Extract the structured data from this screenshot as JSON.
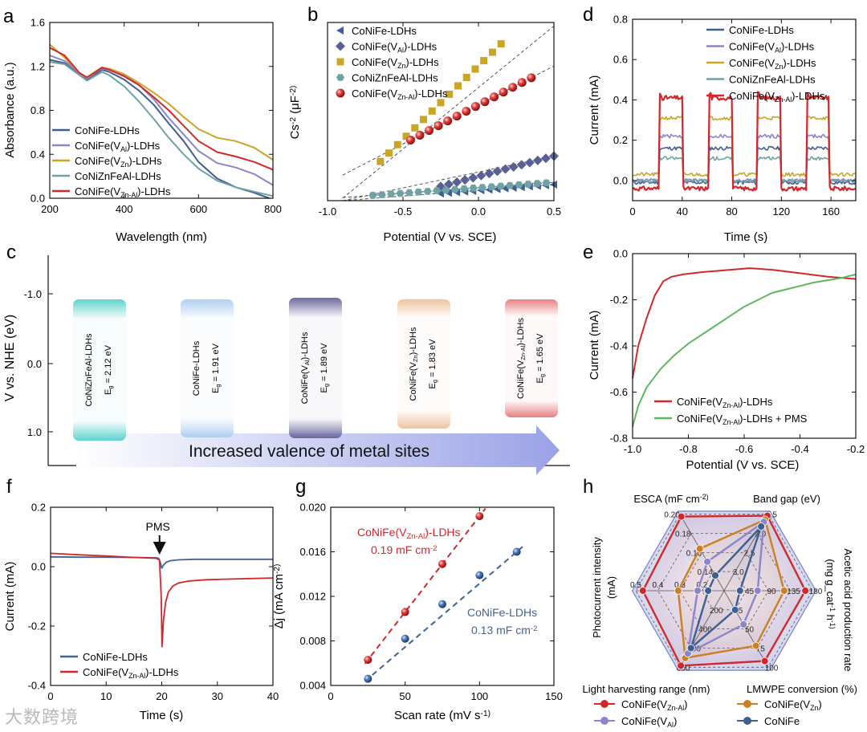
{
  "colors": {
    "CoNiFe": "#3d5f94",
    "VAl": "#8b85c9",
    "VZn": "#c9a627",
    "ZnFeAl": "#6fa2a4",
    "VZnAl": "#d1282c",
    "pms": "#5cb85c",
    "slate": "#3f6497"
  },
  "watermark": "大数跨境",
  "chart_data": [
    {
      "panel": "a",
      "type": "line",
      "xlabel": "Wavelength (nm)",
      "ylabel": "Absorbance (a.u.)",
      "xlim": [
        200,
        800
      ],
      "ylim": [
        0,
        1.6
      ],
      "xticks": [
        "200",
        "400",
        "600",
        "800"
      ],
      "yticks": [
        "0.0",
        "0.4",
        "0.8",
        "1.2",
        "1.6"
      ],
      "series": [
        {
          "name": "CoNiFe-LDHs",
          "color": "CoNiFe",
          "x": [
            200,
            240,
            260,
            280,
            300,
            320,
            340,
            360,
            400,
            440,
            480,
            520,
            560,
            600,
            650,
            700,
            750,
            790
          ],
          "y": [
            1.26,
            1.23,
            1.18,
            1.12,
            1.08,
            1.12,
            1.17,
            1.15,
            1.08,
            0.98,
            0.85,
            0.68,
            0.52,
            0.33,
            0.18,
            0.1,
            0.05,
            0.0
          ]
        },
        {
          "name": "CoNiFe(V_Al)-LDHs",
          "color": "VAl",
          "x": [
            200,
            240,
            260,
            280,
            300,
            320,
            340,
            360,
            400,
            440,
            480,
            520,
            560,
            600,
            650,
            700,
            750,
            800
          ],
          "y": [
            1.3,
            1.25,
            1.2,
            1.14,
            1.1,
            1.14,
            1.18,
            1.17,
            1.12,
            1.03,
            0.9,
            0.73,
            0.58,
            0.43,
            0.32,
            0.28,
            0.22,
            0.12
          ]
        },
        {
          "name": "CoNiFe(V_Zn)-LDHs",
          "color": "VZn",
          "x": [
            200,
            240,
            260,
            280,
            300,
            320,
            340,
            360,
            400,
            440,
            480,
            520,
            560,
            600,
            650,
            700,
            750,
            800
          ],
          "y": [
            1.4,
            1.28,
            1.21,
            1.14,
            1.1,
            1.15,
            1.19,
            1.18,
            1.13,
            1.05,
            0.96,
            0.86,
            0.74,
            0.63,
            0.55,
            0.52,
            0.46,
            0.35
          ]
        },
        {
          "name": "CoNiZnFeAl-LDHs",
          "color": "ZnFeAl",
          "x": [
            200,
            240,
            260,
            280,
            300,
            320,
            340,
            360,
            400,
            440,
            480,
            520,
            560,
            600,
            650,
            700,
            750,
            800
          ],
          "y": [
            1.24,
            1.22,
            1.17,
            1.12,
            1.07,
            1.11,
            1.15,
            1.12,
            1.02,
            0.88,
            0.72,
            0.55,
            0.4,
            0.27,
            0.16,
            0.1,
            0.06,
            0.02
          ]
        },
        {
          "name": "CoNiFe(V_Zn-Al)-LDHs",
          "color": "VZnAl",
          "x": [
            200,
            240,
            260,
            280,
            300,
            320,
            340,
            360,
            400,
            440,
            480,
            520,
            560,
            600,
            650,
            700,
            750,
            800
          ],
          "y": [
            1.37,
            1.3,
            1.22,
            1.14,
            1.1,
            1.14,
            1.19,
            1.17,
            1.11,
            1.03,
            0.92,
            0.8,
            0.66,
            0.52,
            0.42,
            0.38,
            0.33,
            0.26
          ]
        }
      ]
    },
    {
      "panel": "b",
      "type": "scatter",
      "xlabel": "Potential (V vs. SCE)",
      "ylabel": "Cs-2 (μF-2)",
      "xlim": [
        -1.0,
        0.5
      ],
      "ylim": [
        0,
        1
      ],
      "xticks": [
        "-1.0",
        "-0.5",
        "0.0",
        "0.5"
      ],
      "series": [
        {
          "name": "CoNiFe-LDHs",
          "marker": "triangle-left",
          "color": "CoNiFe",
          "x0": -0.25,
          "x1": 0.5,
          "y0": 0.04,
          "y1": 0.09,
          "n": 15
        },
        {
          "name": "CoNiFe(V_Al)-LDHs",
          "marker": "diamond",
          "color": "CoNiFe",
          "x0": -0.25,
          "x1": 0.5,
          "y0": 0.08,
          "y1": 0.25,
          "n": 15
        },
        {
          "name": "CoNiFe(V_Zn)-LDHs",
          "marker": "square",
          "color": "VZn",
          "x0": -0.65,
          "x1": 0.15,
          "y0": 0.22,
          "y1": 0.88,
          "n": 15
        },
        {
          "name": "CoNiZnFeAl-LDHs",
          "marker": "hexagon",
          "color": "ZnFeAl",
          "x0": -0.7,
          "x1": 0.45,
          "y0": 0.03,
          "y1": 0.1,
          "n": 20
        },
        {
          "name": "CoNiFe(V_Zn-Al)-LDHs",
          "marker": "sphere",
          "color": "VZnAl",
          "x0": -0.45,
          "x1": 0.35,
          "y0": 0.34,
          "y1": 0.69,
          "n": 14
        }
      ]
    },
    {
      "panel": "d",
      "type": "line",
      "xlabel": "Time (s)",
      "ylabel": "Current (mA)",
      "xlim": [
        0,
        180
      ],
      "ylim": [
        -0.1,
        0.8
      ],
      "xticks": [
        "0",
        "40",
        "80",
        "120",
        "160"
      ],
      "yticks": [
        "0.0",
        "0.2",
        "0.4",
        "0.6",
        "0.8"
      ],
      "light_on": [
        [
          22,
          40
        ],
        [
          62,
          80
        ],
        [
          101,
          119
        ],
        [
          141,
          158
        ]
      ],
      "series": [
        {
          "name": "CoNiFe-LDHs",
          "color": "CoNiFe",
          "base": -0.01,
          "on": 0.16
        },
        {
          "name": "CoNiFe(V_Al)-LDHs",
          "color": "VAl",
          "base": 0.0,
          "on": 0.22
        },
        {
          "name": "CoNiFe(V_Zn)-LDHs",
          "color": "VZn",
          "base": 0.03,
          "on": 0.31
        },
        {
          "name": "CoNiZnFeAl-LDHs",
          "color": "ZnFeAl",
          "base": 0.0,
          "on": 0.11
        },
        {
          "name": "CoNiFe(V_Zn-Al)-LDHs",
          "color": "VZnAl",
          "base": -0.04,
          "on": 0.41
        }
      ]
    },
    {
      "panel": "c",
      "type": "diagram",
      "ylabel": "V vs. NHE (eV)",
      "yticks": [
        "-1.0",
        "0.0",
        "1.0"
      ],
      "arrow_text": "Increased valence of metal sites",
      "bars": [
        {
          "name": "CoNiZnFeAl-LDHs",
          "eg": "Eg = 2.12 eV",
          "color": "#5fd4cf"
        },
        {
          "name": "CoNiFe-LDHs",
          "eg": "Eg = 1.91 eV",
          "color": "#b0cff0"
        },
        {
          "name": "CoNiFe(V_Al)-LDHs",
          "eg": "Eg = 1.89 eV",
          "color": "#6c6a9e"
        },
        {
          "name": "CoNiFe(V_Zn)-LDHs",
          "eg": "Eg = 1.83 eV",
          "color": "#efc49d"
        },
        {
          "name": "CoNiFe(V_Zn-Al)-LDHs",
          "eg": "Eg = 1.65 eV",
          "color": "#e88080"
        }
      ]
    },
    {
      "panel": "e",
      "type": "line",
      "xlabel": "Potential (V vs. SCE)",
      "ylabel": "Current (mA)",
      "xlim": [
        -1.0,
        -0.2
      ],
      "ylim": [
        -0.8,
        0.0
      ],
      "xticks": [
        "-1.0",
        "-0.8",
        "-0.6",
        "-0.4",
        "-0.2"
      ],
      "yticks": [
        "0.0",
        "-0.2",
        "-0.4",
        "-0.6",
        "-0.8"
      ],
      "series": [
        {
          "name": "CoNiFe(V_Zn-Al)-LDHs",
          "color": "VZnAl",
          "x": [
            -1.0,
            -0.98,
            -0.95,
            -0.92,
            -0.89,
            -0.86,
            -0.82,
            -0.75,
            -0.65,
            -0.58,
            -0.5,
            -0.4,
            -0.3,
            -0.2
          ],
          "y": [
            -0.54,
            -0.4,
            -0.28,
            -0.18,
            -0.12,
            -0.1,
            -0.09,
            -0.08,
            -0.07,
            -0.063,
            -0.07,
            -0.085,
            -0.1,
            -0.11
          ]
        },
        {
          "name": "CoNiFe(V_Zn-Al)-LDHs + PMS",
          "color": "pms",
          "x": [
            -1.0,
            -0.98,
            -0.95,
            -0.9,
            -0.85,
            -0.8,
            -0.75,
            -0.7,
            -0.65,
            -0.6,
            -0.55,
            -0.5,
            -0.45,
            -0.4,
            -0.35,
            -0.3,
            -0.25,
            -0.2
          ],
          "y": [
            -0.75,
            -0.66,
            -0.58,
            -0.5,
            -0.44,
            -0.39,
            -0.35,
            -0.31,
            -0.27,
            -0.23,
            -0.2,
            -0.17,
            -0.155,
            -0.14,
            -0.125,
            -0.115,
            -0.105,
            -0.09
          ]
        }
      ]
    },
    {
      "panel": "f",
      "type": "line",
      "xlabel": "Time (s)",
      "ylabel": "Current (mA)",
      "xlim": [
        0,
        40
      ],
      "ylim": [
        -0.4,
        0.2
      ],
      "xticks": [
        "0",
        "10",
        "20",
        "30",
        "40"
      ],
      "yticks": [
        "0.2",
        "0.0",
        "-0.2",
        "-0.4"
      ],
      "annotation": "PMS",
      "annotation_x": 19.6,
      "series": [
        {
          "name": "CoNiFe-LDHs",
          "color": "slate",
          "x": [
            0,
            5,
            10,
            15,
            19,
            19.5,
            19.8,
            20.0,
            20.3,
            20.8,
            21.5,
            23,
            26,
            30,
            35,
            40
          ],
          "y": [
            0.033,
            0.032,
            0.032,
            0.031,
            0.03,
            0.027,
            0.01,
            -0.005,
            0.005,
            0.015,
            0.02,
            0.023,
            0.025,
            0.025,
            0.025,
            0.025
          ]
        },
        {
          "name": "CoNiFe(V_Zn-Al)-LDHs",
          "color": "VZnAl",
          "x": [
            0,
            5,
            10,
            15,
            19,
            19.6,
            19.9,
            20.05,
            20.3,
            20.7,
            21.2,
            22,
            23,
            25,
            28,
            32,
            36,
            40
          ],
          "y": [
            0.045,
            0.04,
            0.036,
            0.031,
            0.028,
            0.022,
            -0.1,
            -0.27,
            -0.18,
            -0.12,
            -0.085,
            -0.065,
            -0.055,
            -0.048,
            -0.044,
            -0.042,
            -0.04,
            -0.038
          ]
        }
      ]
    },
    {
      "panel": "g",
      "type": "scatter",
      "xlabel": "Scan rate (mV s-1)",
      "ylabel": "Δj (mA cm-2)",
      "xlim": [
        0,
        150
      ],
      "ylim": [
        0.004,
        0.02
      ],
      "xticks": [
        "0",
        "50",
        "100",
        "150"
      ],
      "yticks": [
        "0.004",
        "0.008",
        "0.012",
        "0.016",
        "0.020"
      ],
      "series": [
        {
          "name": "CoNiFe(V_Zn-Al)-LDHs",
          "color": "VZnAl",
          "label1": "CoNiFe(V_Zn-Al)-LDHs",
          "label2": "0.19 mF cm-2",
          "x": [
            25,
            50,
            75,
            100
          ],
          "y": [
            0.0063,
            0.0106,
            0.0149,
            0.0192
          ]
        },
        {
          "name": "CoNiFe-LDHs",
          "color": "slate",
          "label1": "CoNiFe-LDHs",
          "label2": "0.13 mF cm-2",
          "x": [
            25,
            50,
            75,
            100,
            125
          ],
          "y": [
            0.0046,
            0.0082,
            0.0113,
            0.0139,
            0.016
          ]
        }
      ]
    },
    {
      "panel": "h",
      "type": "radar",
      "axes": [
        "ESCA (mF cm-2)",
        "Band gap (eV)",
        "Acetic acid production rate (mg gcat-1 h-1)",
        "LMWPE conversion (%)",
        "Light harvesting range (nm)",
        "Photocurrent intensity (mA)"
      ],
      "axis_ticks": [
        [
          "0.14",
          "0.16",
          "0.18",
          "0.20"
        ],
        [
          "3.0",
          "2.5",
          "2.0",
          "1.5"
        ],
        [
          "45",
          "90",
          "135",
          "180"
        ],
        [
          "25",
          "50",
          "75",
          "100"
        ],
        [
          "200",
          "400",
          "600",
          "800"
        ],
        [
          "0.2",
          "0.3",
          "0.4",
          "0.5"
        ]
      ],
      "series": [
        {
          "name": "CoNiFe(V_Zn-Al)",
          "color": "VZnAl",
          "values": [
            0.97,
            0.98,
            0.92,
            0.92,
            0.98,
            0.92
          ]
        },
        {
          "name": "CoNiFe(V_Zn)",
          "color": "#cc7f25",
          "values": [
            0.55,
            0.93,
            0.68,
            0.72,
            0.88,
            0.52
          ]
        },
        {
          "name": "CoNiFe(V_Al)",
          "color": "VAl",
          "values": [
            0.38,
            0.9,
            0.38,
            0.44,
            0.82,
            0.3
          ]
        },
        {
          "name": "CoNiFe",
          "color": "CoNiFe",
          "values": [
            0.2,
            0.84,
            0.18,
            0.25,
            0.75,
            0.18
          ]
        }
      ]
    }
  ]
}
